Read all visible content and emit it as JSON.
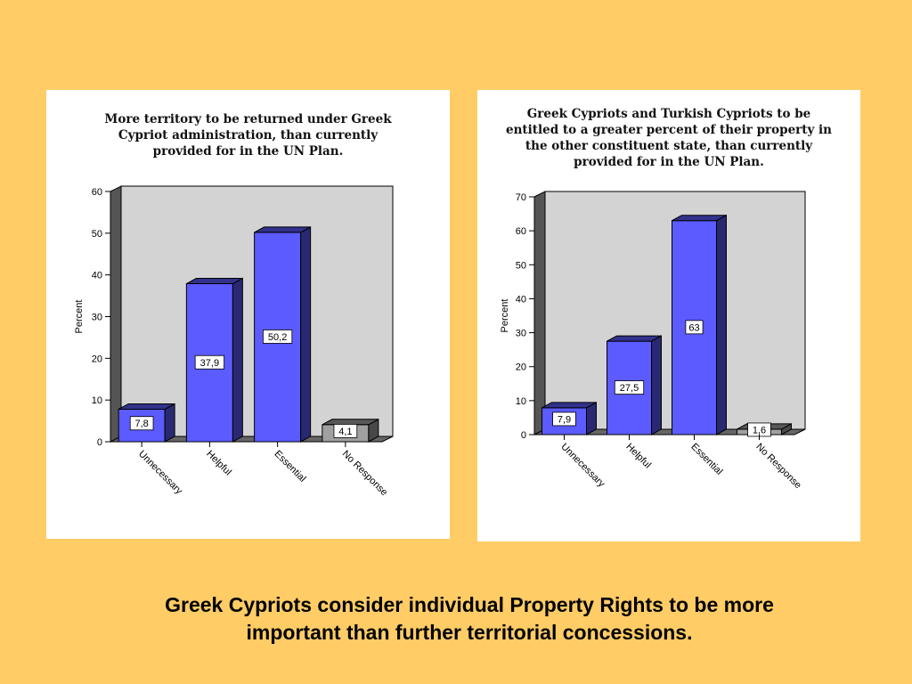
{
  "chart_data": [
    {
      "type": "bar",
      "title": "More territory to be returned under Greek\nCypriot administration, than currently\nprovided for in the UN Plan.",
      "ylabel": "Percent",
      "categories": [
        "Unnecessary",
        "Helpful",
        "Essential",
        "No Response"
      ],
      "values": [
        7.8,
        37.9,
        50.2,
        4.1
      ],
      "value_labels": [
        "7,8",
        "37,9",
        "50,2",
        "4,1"
      ],
      "bar_colors": [
        "#5B5BFF",
        "#5B5BFF",
        "#5B5BFF",
        "#A0A0A0"
      ],
      "ylim": [
        0,
        60
      ],
      "yticks": [
        0,
        10,
        20,
        30,
        40,
        50,
        60
      ],
      "grid": false
    },
    {
      "type": "bar",
      "title": "Greek Cypriots and Turkish Cypriots to be\nentitled to a greater percent of their property in\nthe other constituent state, than currently\nprovided for in the UN Plan.",
      "ylabel": "Percent",
      "categories": [
        "Unnecessary",
        "Helpful",
        "Essential",
        "No Response"
      ],
      "values": [
        7.9,
        27.5,
        63,
        1.6
      ],
      "value_labels": [
        "7,9",
        "27,5",
        "63",
        "1,6"
      ],
      "bar_colors": [
        "#5B5BFF",
        "#5B5BFF",
        "#5B5BFF",
        "#A0A0A0"
      ],
      "ylim": [
        0,
        70
      ],
      "yticks": [
        0,
        10,
        20,
        30,
        40,
        50,
        60,
        70
      ],
      "grid": false
    }
  ],
  "caption": "Greek Cypriots consider individual Property Rights to be more\nimportant than further territorial concessions.",
  "colors": {
    "background": "#FFCC66",
    "panel": "#FFFFFF",
    "plot_back_wall": "#D3D3D3",
    "side_wall": "#555555",
    "floor": "#666666"
  }
}
